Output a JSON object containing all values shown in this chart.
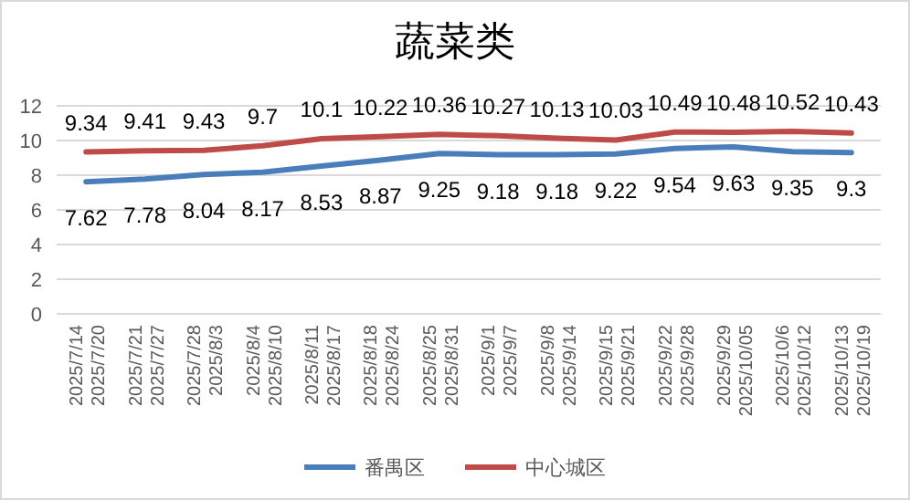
{
  "chart_data": {
    "type": "line",
    "title": "蔬菜类",
    "categories": [
      "2025/7/14\n2025/7/20",
      "2025/7/21\n2025/7/27",
      "2025/7/28\n2025/8/3",
      "2025/8/4\n2025/8/10",
      "2025/8/11\n2025/8/17",
      "2025/8/18\n2025/8/24",
      "2025/8/25\n2025/8/31",
      "2025/9/1\n2025/9/7",
      "2025/9/8\n2025/9/14",
      "2025/9/15\n2025/9/21",
      "2025/9/22\n2025/9/28",
      "2025/9/29\n2025/10/05",
      "2025/10/6\n2025/10/12",
      "2025/10/13\n2025/10/19"
    ],
    "series": [
      {
        "name": "番禺区",
        "color": "#4a7ebb",
        "values": [
          7.62,
          7.78,
          8.04,
          8.17,
          8.53,
          8.87,
          9.25,
          9.18,
          9.18,
          9.22,
          9.54,
          9.63,
          9.35,
          9.3
        ]
      },
      {
        "name": "中心城区",
        "color": "#be4b48",
        "values": [
          9.34,
          9.41,
          9.43,
          9.7,
          10.1,
          10.22,
          10.36,
          10.27,
          10.13,
          10.03,
          10.49,
          10.48,
          10.52,
          10.43
        ]
      }
    ],
    "ylim": [
      0,
      12
    ],
    "yticks": [
      0,
      2,
      4,
      6,
      8,
      10,
      12
    ],
    "grid": "y",
    "legend": "bottom",
    "data_labels": true,
    "marker": "none",
    "line_style": "solid"
  }
}
